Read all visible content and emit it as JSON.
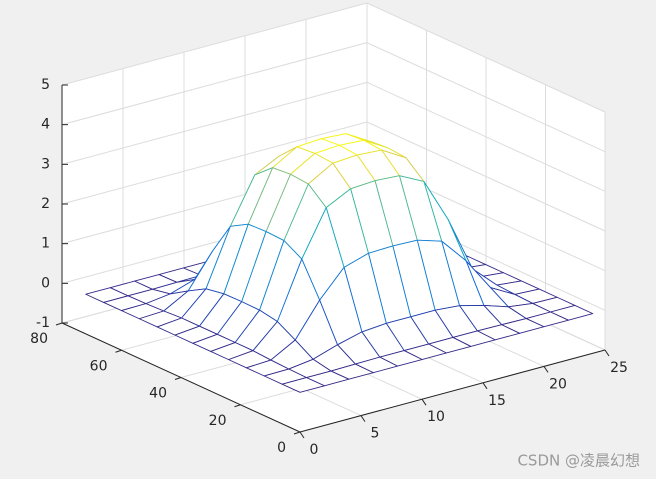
{
  "chart_data": {
    "type": "mesh",
    "x": [
      0,
      2,
      4,
      6,
      8,
      10,
      12,
      14,
      16,
      18,
      20,
      22,
      24
    ],
    "y": [
      0,
      6,
      12,
      18,
      24,
      30,
      36,
      42,
      48,
      54,
      60,
      66,
      72
    ],
    "z": [
      [
        0,
        0,
        0,
        0,
        0,
        0,
        0,
        0,
        0,
        0,
        0,
        0,
        0
      ],
      [
        0,
        0,
        0,
        0.01,
        0.02,
        0.02,
        0.02,
        0.02,
        0.02,
        0.01,
        0,
        0,
        0
      ],
      [
        0,
        0.01,
        0.09,
        0.29,
        0.45,
        0.5,
        0.5,
        0.5,
        0.45,
        0.29,
        0.09,
        0.01,
        0
      ],
      [
        0,
        0.03,
        0.37,
        1.21,
        1.87,
        2.06,
        2.08,
        2.06,
        1.87,
        1.21,
        0.37,
        0.03,
        0
      ],
      [
        0,
        0.06,
        0.63,
        2.04,
        3.17,
        3.48,
        3.52,
        3.48,
        3.17,
        2.04,
        0.63,
        0.06,
        0
      ],
      [
        0,
        0.06,
        0.71,
        2.3,
        3.56,
        3.92,
        3.96,
        3.92,
        3.56,
        2.3,
        0.71,
        0.06,
        0
      ],
      [
        0,
        0.06,
        0.72,
        2.32,
        3.6,
        3.96,
        4,
        3.96,
        3.6,
        2.32,
        0.72,
        0.06,
        0
      ],
      [
        0,
        0.06,
        0.71,
        2.3,
        3.56,
        3.92,
        3.96,
        3.92,
        3.56,
        2.3,
        0.71,
        0.06,
        0
      ],
      [
        0,
        0.06,
        0.63,
        2.04,
        3.17,
        3.48,
        3.52,
        3.48,
        3.17,
        2.04,
        0.63,
        0.06,
        0
      ],
      [
        0,
        0.03,
        0.37,
        1.21,
        1.87,
        2.06,
        2.08,
        2.06,
        1.87,
        1.21,
        0.37,
        0.03,
        0
      ],
      [
        0,
        0.01,
        0.09,
        0.29,
        0.45,
        0.5,
        0.5,
        0.5,
        0.45,
        0.29,
        0.09,
        0.01,
        0
      ],
      [
        0,
        0,
        0,
        0.01,
        0.02,
        0.02,
        0.02,
        0.02,
        0.02,
        0.01,
        0,
        0,
        0
      ],
      [
        0,
        0,
        0,
        0,
        0,
        0,
        0,
        0,
        0,
        0,
        0,
        0,
        0
      ]
    ],
    "xlim": [
      0,
      25
    ],
    "xticks": [
      0,
      5,
      10,
      15,
      20,
      25
    ],
    "ylim": [
      0,
      80
    ],
    "yticks": [
      0,
      20,
      40,
      60,
      80
    ],
    "zlim": [
      -1,
      5
    ],
    "zticks": [
      -1,
      0,
      1,
      2,
      3,
      4,
      5
    ],
    "grid": true,
    "colormap": "parula",
    "watermark": "CSDN @凌晨幻想"
  }
}
